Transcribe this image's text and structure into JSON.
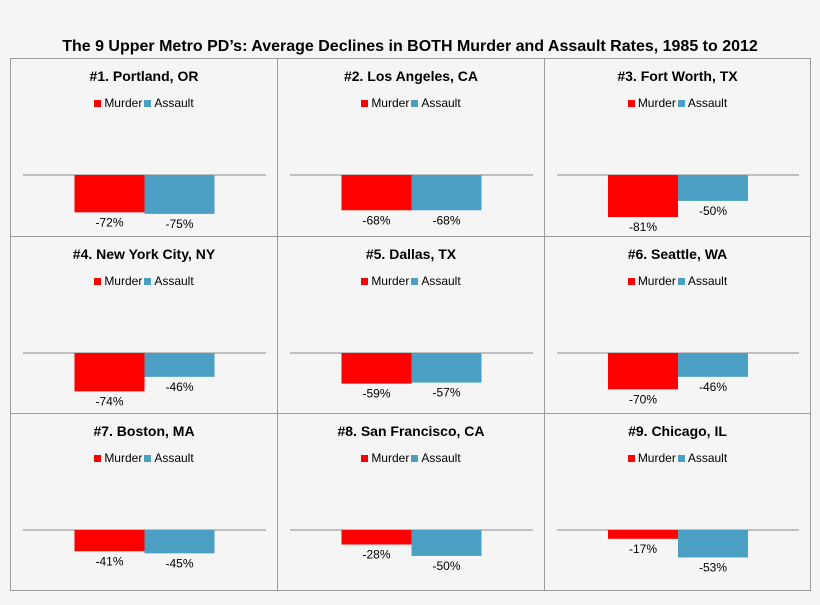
{
  "title": "The 9 Upper Metro PD’s: Average Declines in BOTH Murder and Assault Rates, 1985 to 2012",
  "colors": {
    "murder": "#ff0000",
    "assault": "#4a9fc2",
    "axis": "#8c8c8c"
  },
  "chart_data": [
    {
      "type": "bar",
      "title": "#1. Portland, OR",
      "categories": [
        ""
      ],
      "ylim": [
        -90,
        0
      ],
      "series": [
        {
          "name": "Murder",
          "values": [
            -72
          ],
          "labels": [
            "-72%"
          ]
        },
        {
          "name": "Assault",
          "values": [
            -75
          ],
          "labels": [
            "-75%"
          ]
        }
      ],
      "legend": "top"
    },
    {
      "type": "bar",
      "title": "#2. Los Angeles, CA",
      "categories": [
        ""
      ],
      "ylim": [
        -90,
        0
      ],
      "series": [
        {
          "name": "Murder",
          "values": [
            -68
          ],
          "labels": [
            "-68%"
          ]
        },
        {
          "name": "Assault",
          "values": [
            -68
          ],
          "labels": [
            "-68%"
          ]
        }
      ],
      "legend": "top"
    },
    {
      "type": "bar",
      "title": "#3. Fort Worth, TX",
      "categories": [
        ""
      ],
      "ylim": [
        -90,
        0
      ],
      "series": [
        {
          "name": "Murder",
          "values": [
            -81
          ],
          "labels": [
            "-81%"
          ]
        },
        {
          "name": "Assault",
          "values": [
            -50
          ],
          "labels": [
            "-50%"
          ]
        }
      ],
      "legend": "top"
    },
    {
      "type": "bar",
      "title": "#4. New York City, NY",
      "categories": [
        ""
      ],
      "ylim": [
        -90,
        0
      ],
      "series": [
        {
          "name": "Murder",
          "values": [
            -74
          ],
          "labels": [
            "-74%"
          ]
        },
        {
          "name": "Assault",
          "values": [
            -46
          ],
          "labels": [
            "-46%"
          ]
        }
      ],
      "legend": "top"
    },
    {
      "type": "bar",
      "title": "#5. Dallas, TX",
      "categories": [
        ""
      ],
      "ylim": [
        -90,
        0
      ],
      "series": [
        {
          "name": "Murder",
          "values": [
            -59
          ],
          "labels": [
            "-59%"
          ]
        },
        {
          "name": "Assault",
          "values": [
            -57
          ],
          "labels": [
            "-57%"
          ]
        }
      ],
      "legend": "top"
    },
    {
      "type": "bar",
      "title": "#6. Seattle, WA",
      "categories": [
        ""
      ],
      "ylim": [
        -90,
        0
      ],
      "series": [
        {
          "name": "Murder",
          "values": [
            -70
          ],
          "labels": [
            "-70%"
          ]
        },
        {
          "name": "Assault",
          "values": [
            -46
          ],
          "labels": [
            "-46%"
          ]
        }
      ],
      "legend": "top"
    },
    {
      "type": "bar",
      "title": "#7. Boston, MA",
      "categories": [
        ""
      ],
      "ylim": [
        -90,
        0
      ],
      "series": [
        {
          "name": "Murder",
          "values": [
            -41
          ],
          "labels": [
            "-41%"
          ]
        },
        {
          "name": "Assault",
          "values": [
            -45
          ],
          "labels": [
            "-45%"
          ]
        }
      ],
      "legend": "top"
    },
    {
      "type": "bar",
      "title": "#8. San Francisco, CA",
      "categories": [
        ""
      ],
      "ylim": [
        -90,
        0
      ],
      "series": [
        {
          "name": "Murder",
          "values": [
            -28
          ],
          "labels": [
            "-28%"
          ]
        },
        {
          "name": "Assault",
          "values": [
            -50
          ],
          "labels": [
            "-50%"
          ]
        }
      ],
      "legend": "top"
    },
    {
      "type": "bar",
      "title": "#9. Chicago, IL",
      "categories": [
        ""
      ],
      "ylim": [
        -90,
        0
      ],
      "series": [
        {
          "name": "Murder",
          "values": [
            -17
          ],
          "labels": [
            "-17%"
          ]
        },
        {
          "name": "Assault",
          "values": [
            -53
          ],
          "labels": [
            "-53%"
          ]
        }
      ],
      "legend": "top"
    }
  ]
}
